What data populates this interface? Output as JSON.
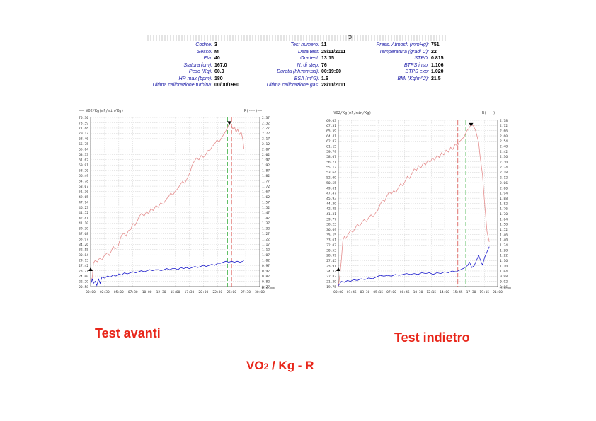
{
  "header": {
    "mark": "ↄ",
    "col1": [
      {
        "label": "Codice:",
        "value": "3"
      },
      {
        "label": "Sesso:",
        "value": "M"
      },
      {
        "label": "Età:",
        "value": "40"
      },
      {
        "label": "Statura (cm):",
        "value": "167.0"
      },
      {
        "label": "Peso (Kg):",
        "value": "60.0"
      },
      {
        "label": "HR max (bpm):",
        "value": "180"
      },
      {
        "label": "Ultima calibrazione turbina:",
        "value": "00/00/1990"
      }
    ],
    "col2": [
      {
        "label": "Test numero:",
        "value": "11"
      },
      {
        "label": "Data test:",
        "value": "28/11/2011"
      },
      {
        "label": "Ora test:",
        "value": "13:15"
      },
      {
        "label": "N. di step:",
        "value": "76"
      },
      {
        "label": "Durata (hh:mm:ss):",
        "value": "00:19:00"
      },
      {
        "label": "BSA (m^2):",
        "value": "1.6"
      },
      {
        "label": "Ultima calibrazione gas:",
        "value": "28/11/2011"
      }
    ],
    "col3": [
      {
        "label": "Press. Atmosf. (mmHg):",
        "value": "751"
      },
      {
        "label": "Temperatura (gradi C):",
        "value": "22"
      },
      {
        "label": "STPD:",
        "value": "0.815"
      },
      {
        "label": "BTPS insp:",
        "value": "1.106"
      },
      {
        "label": "BTPS exp:",
        "value": "1.020"
      },
      {
        "label": "BMI (Kg/m^2):",
        "value": "21.5"
      }
    ]
  },
  "captions": {
    "left": "Test avanti",
    "right": "Test indietro",
    "bottom_main": "VO",
    "bottom_sub": "2",
    "bottom_rest": " / Kg  -  R"
  },
  "colors": {
    "vo2": "#e58f8f",
    "r": "#1a1acc",
    "caption": "#e8261a",
    "dash_red": "#d9534f",
    "dash_green": "#3cb043"
  },
  "chart_data": [
    {
      "type": "line",
      "title": "VO2/Kg(ml/min/Kg)",
      "y2label": "R(---)",
      "xlabel": "t(hh:mm:ss)",
      "left_ticks": [
        "75.30",
        "73.59",
        "71.88",
        "70.17",
        "68.46",
        "66.75",
        "65.04",
        "63.33",
        "61.62",
        "59.91",
        "58.20",
        "56.49",
        "54.78",
        "53.07",
        "51.36",
        "49.65",
        "47.94",
        "46.23",
        "44.52",
        "42.81",
        "41.10",
        "39.39",
        "37.68",
        "35.97",
        "34.26",
        "32.55",
        "30.84",
        "29.13",
        "27.42",
        "25.71",
        "24.00",
        "22.29",
        "20.58"
      ],
      "right_ticks": [
        "2.37",
        "2.32",
        "2.27",
        "2.22",
        "2.17",
        "2.12",
        "2.07",
        "2.02",
        "1.97",
        "1.92",
        "1.87",
        "1.82",
        "1.77",
        "1.72",
        "1.67",
        "1.62",
        "1.57",
        "1.52",
        "1.47",
        "1.42",
        "1.37",
        "1.32",
        "1.27",
        "1.22",
        "1.17",
        "1.12",
        "1.07",
        "1.02",
        "0.97",
        "0.92",
        "0.87",
        "0.82",
        "0.77"
      ],
      "x_ticks": [
        "00:00",
        "02:30",
        "05:00",
        "07:30",
        "10:00",
        "12:30",
        "15:00",
        "17:30",
        "20:00",
        "22:30",
        "25:00",
        "27:30",
        "30:00"
      ],
      "vline_red_x": 25.0,
      "vline_green_x": 24.3,
      "vo2": [
        [
          0,
          22.3
        ],
        [
          0.3,
          23.5
        ],
        [
          0.5,
          28.2
        ],
        [
          0.8,
          29.0
        ],
        [
          1.2,
          28.6
        ],
        [
          1.6,
          29.8
        ],
        [
          2.0,
          29.2
        ],
        [
          2.5,
          30.8
        ],
        [
          3.0,
          31.5
        ],
        [
          3.3,
          30.6
        ],
        [
          3.7,
          32.2
        ],
        [
          4.0,
          33.6
        ],
        [
          4.3,
          32.8
        ],
        [
          4.8,
          33.2
        ],
        [
          5.2,
          35.6
        ],
        [
          5.5,
          37.2
        ],
        [
          5.9,
          37.8
        ],
        [
          6.3,
          36.9
        ],
        [
          6.7,
          38.7
        ],
        [
          7.1,
          39.0
        ],
        [
          7.5,
          41.0
        ],
        [
          7.9,
          40.4
        ],
        [
          8.3,
          41.8
        ],
        [
          8.6,
          43.2
        ],
        [
          9.0,
          44.2
        ],
        [
          9.5,
          43.4
        ],
        [
          9.9,
          44.8
        ],
        [
          10.3,
          44.1
        ],
        [
          10.7,
          45.8
        ],
        [
          11.1,
          45.2
        ],
        [
          11.6,
          46.8
        ],
        [
          12.0,
          46.2
        ],
        [
          12.4,
          47.6
        ],
        [
          12.9,
          47.2
        ],
        [
          13.3,
          48.6
        ],
        [
          13.8,
          49.6
        ],
        [
          14.2,
          50.8
        ],
        [
          14.6,
          50.2
        ],
        [
          15.0,
          51.4
        ],
        [
          15.5,
          52.4
        ],
        [
          15.9,
          53.6
        ],
        [
          16.3,
          54.6
        ],
        [
          16.7,
          54.0
        ],
        [
          17.2,
          55.8
        ],
        [
          17.6,
          57.4
        ],
        [
          18.0,
          59.8
        ],
        [
          18.4,
          61.2
        ],
        [
          18.8,
          62.2
        ],
        [
          19.2,
          61.6
        ],
        [
          19.6,
          63.0
        ],
        [
          20.0,
          62.4
        ],
        [
          20.4,
          63.2
        ],
        [
          20.8,
          64.6
        ],
        [
          21.2,
          64.8
        ],
        [
          21.6,
          66.0
        ],
        [
          22.0,
          66.8
        ],
        [
          22.4,
          68.0
        ],
        [
          22.8,
          67.4
        ],
        [
          23.2,
          68.6
        ],
        [
          23.6,
          69.8
        ],
        [
          24.0,
          71.0
        ],
        [
          24.3,
          72.0
        ],
        [
          24.6,
          73.6
        ],
        [
          24.9,
          73.3
        ],
        [
          25.2,
          71.6
        ],
        [
          25.5,
          72.2
        ],
        [
          25.8,
          70.6
        ],
        [
          26.1,
          71.4
        ],
        [
          26.4,
          69.8
        ],
        [
          26.7,
          70.6
        ],
        [
          27.0,
          68.2
        ],
        [
          27.2,
          65.0
        ]
      ],
      "r": [
        [
          0,
          0.79
        ],
        [
          0.3,
          0.84
        ],
        [
          0.5,
          0.8
        ],
        [
          0.8,
          0.82
        ],
        [
          1.1,
          0.78
        ],
        [
          1.4,
          0.84
        ],
        [
          1.7,
          0.8
        ],
        [
          2.0,
          0.86
        ],
        [
          2.5,
          0.85
        ],
        [
          3.0,
          0.87
        ],
        [
          3.5,
          0.86
        ],
        [
          4.0,
          0.88
        ],
        [
          4.5,
          0.87
        ],
        [
          5.0,
          0.89
        ],
        [
          5.5,
          0.88
        ],
        [
          6.0,
          0.9
        ],
        [
          6.5,
          0.89
        ],
        [
          7.0,
          0.9
        ],
        [
          7.5,
          0.91
        ],
        [
          8.0,
          0.9
        ],
        [
          8.5,
          0.91
        ],
        [
          9.0,
          0.92
        ],
        [
          9.5,
          0.91
        ],
        [
          10.0,
          0.92
        ],
        [
          10.5,
          0.93
        ],
        [
          11.0,
          0.92
        ],
        [
          11.5,
          0.93
        ],
        [
          12.0,
          0.93
        ],
        [
          12.5,
          0.92
        ],
        [
          13.0,
          0.93
        ],
        [
          13.5,
          0.94
        ],
        [
          14.0,
          0.93
        ],
        [
          14.5,
          0.94
        ],
        [
          15.0,
          0.94
        ],
        [
          15.5,
          0.93
        ],
        [
          16.0,
          0.95
        ],
        [
          16.5,
          0.94
        ],
        [
          17.0,
          0.95
        ],
        [
          17.5,
          0.94
        ],
        [
          18.0,
          0.95
        ],
        [
          18.5,
          0.96
        ],
        [
          19.0,
          0.95
        ],
        [
          19.5,
          0.96
        ],
        [
          20.0,
          0.97
        ],
        [
          20.5,
          0.96
        ],
        [
          21.0,
          0.97
        ],
        [
          21.5,
          0.98
        ],
        [
          22.0,
          0.97
        ],
        [
          22.5,
          0.99
        ],
        [
          23.0,
          0.99
        ],
        [
          23.5,
          1.0
        ],
        [
          24.0,
          1.01
        ],
        [
          24.5,
          1.0
        ],
        [
          25.0,
          1.01
        ],
        [
          25.5,
          1.0
        ],
        [
          26.0,
          1.01
        ],
        [
          26.5,
          1.0
        ],
        [
          27.0,
          1.01
        ],
        [
          27.2,
          1.02
        ]
      ]
    },
    {
      "type": "line",
      "title": "VO2/Kg(ml/min/Kg)",
      "y2label": "R(---)",
      "xlabel": "t(hh:mm:ss)",
      "left_ticks": [
        "69.03",
        "67.31",
        "65.59",
        "64.41",
        "62.87",
        "61.15",
        "59.79",
        "58.07",
        "56.71",
        "55.17",
        "53.64",
        "52.09",
        "50.55",
        "49.01",
        "47.47",
        "45.93",
        "44.39",
        "42.85",
        "41.31",
        "39.77",
        "38.23",
        "36.69",
        "35.15",
        "33.61",
        "32.07",
        "30.53",
        "28.99",
        "27.45",
        "25.91",
        "24.37",
        "22.83",
        "21.29",
        "19.75"
      ],
      "right_ticks": [
        "2.78",
        "2.72",
        "2.66",
        "2.60",
        "2.54",
        "2.48",
        "2.42",
        "2.36",
        "2.30",
        "2.24",
        "2.18",
        "2.12",
        "2.06",
        "2.00",
        "1.94",
        "1.88",
        "1.82",
        "1.76",
        "1.70",
        "1.64",
        "1.58",
        "1.52",
        "1.46",
        "1.40",
        "1.34",
        "1.28",
        "1.22",
        "1.16",
        "1.10",
        "1.04",
        "0.98",
        "0.92",
        "0.86"
      ],
      "x_ticks": [
        "00:00",
        "01:45",
        "03:30",
        "05:15",
        "07:00",
        "08:45",
        "10:30",
        "12:15",
        "14:00",
        "15:45",
        "17:30",
        "19:15",
        "21:00"
      ],
      "vline_red_x": 15.75,
      "vline_green_x": 16.8,
      "vo2": [
        [
          0,
          19.8
        ],
        [
          0.2,
          23.0
        ],
        [
          0.4,
          27.8
        ],
        [
          0.6,
          33.5
        ],
        [
          0.8,
          34.6
        ],
        [
          1.0,
          34.0
        ],
        [
          1.3,
          35.2
        ],
        [
          1.6,
          36.4
        ],
        [
          1.9,
          35.8
        ],
        [
          2.2,
          37.0
        ],
        [
          2.5,
          38.2
        ],
        [
          2.8,
          37.6
        ],
        [
          3.1,
          38.8
        ],
        [
          3.4,
          39.6
        ],
        [
          3.7,
          39.0
        ],
        [
          4.0,
          40.2
        ],
        [
          4.3,
          41.0
        ],
        [
          4.6,
          40.4
        ],
        [
          4.9,
          41.6
        ],
        [
          5.2,
          42.4
        ],
        [
          5.5,
          44.0
        ],
        [
          5.8,
          45.4
        ],
        [
          6.1,
          45.0
        ],
        [
          6.4,
          46.6
        ],
        [
          6.7,
          47.8
        ],
        [
          7.0,
          47.2
        ],
        [
          7.3,
          48.2
        ],
        [
          7.6,
          47.6
        ],
        [
          7.9,
          49.0
        ],
        [
          8.2,
          50.2
        ],
        [
          8.5,
          49.6
        ],
        [
          8.8,
          51.0
        ],
        [
          9.1,
          52.4
        ],
        [
          9.4,
          51.8
        ],
        [
          9.7,
          53.2
        ],
        [
          10.0,
          54.6
        ],
        [
          10.3,
          54.2
        ],
        [
          10.6,
          55.6
        ],
        [
          10.9,
          55.0
        ],
        [
          11.2,
          56.4
        ],
        [
          11.5,
          55.8
        ],
        [
          11.8,
          57.2
        ],
        [
          12.1,
          56.6
        ],
        [
          12.4,
          57.8
        ],
        [
          12.7,
          57.2
        ],
        [
          13.0,
          58.6
        ],
        [
          13.3,
          58.0
        ],
        [
          13.6,
          59.4
        ],
        [
          13.9,
          58.8
        ],
        [
          14.2,
          60.2
        ],
        [
          14.5,
          59.6
        ],
        [
          14.8,
          61.0
        ],
        [
          15.1,
          60.4
        ],
        [
          15.4,
          62.0
        ],
        [
          15.7,
          61.4
        ],
        [
          16.0,
          62.8
        ],
        [
          16.3,
          63.4
        ],
        [
          16.6,
          64.2
        ],
        [
          16.9,
          65.8
        ],
        [
          17.2,
          66.6
        ],
        [
          17.5,
          67.8
        ],
        [
          17.8,
          67.4
        ],
        [
          18.1,
          66.0
        ],
        [
          18.3,
          64.2
        ],
        [
          18.5,
          62.4
        ],
        [
          18.7,
          58.0
        ],
        [
          19.0,
          53.0
        ],
        [
          19.3,
          44.0
        ],
        [
          19.6,
          36.0
        ],
        [
          19.9,
          33.0
        ]
      ],
      "r": [
        [
          0,
          0.87
        ],
        [
          0.4,
          0.92
        ],
        [
          0.8,
          0.91
        ],
        [
          1.2,
          0.93
        ],
        [
          1.6,
          0.92
        ],
        [
          2.0,
          0.94
        ],
        [
          2.5,
          0.93
        ],
        [
          3.0,
          0.95
        ],
        [
          3.5,
          0.94
        ],
        [
          4.0,
          0.96
        ],
        [
          4.5,
          0.95
        ],
        [
          5.0,
          0.97
        ],
        [
          5.5,
          0.99
        ],
        [
          6.0,
          0.98
        ],
        [
          6.5,
          0.99
        ],
        [
          7.0,
          0.98
        ],
        [
          7.5,
          1.0
        ],
        [
          8.0,
          0.99
        ],
        [
          8.5,
          1.0
        ],
        [
          9.0,
          1.01
        ],
        [
          9.5,
          1.0
        ],
        [
          10.0,
          1.01
        ],
        [
          10.5,
          1.0
        ],
        [
          11.0,
          1.02
        ],
        [
          11.5,
          1.01
        ],
        [
          12.0,
          1.02
        ],
        [
          12.5,
          1.0
        ],
        [
          13.0,
          1.02
        ],
        [
          13.5,
          1.01
        ],
        [
          14.0,
          1.03
        ],
        [
          14.5,
          1.02
        ],
        [
          15.0,
          1.04
        ],
        [
          15.5,
          1.03
        ],
        [
          16.0,
          1.05
        ],
        [
          16.5,
          1.07
        ],
        [
          17.0,
          1.1
        ],
        [
          17.3,
          1.14
        ],
        [
          17.6,
          1.08
        ],
        [
          17.9,
          1.1
        ],
        [
          18.2,
          1.16
        ],
        [
          18.5,
          1.22
        ],
        [
          18.8,
          1.15
        ],
        [
          19.0,
          1.11
        ],
        [
          19.3,
          1.2
        ],
        [
          19.6,
          1.26
        ],
        [
          19.9,
          1.32
        ]
      ]
    }
  ]
}
